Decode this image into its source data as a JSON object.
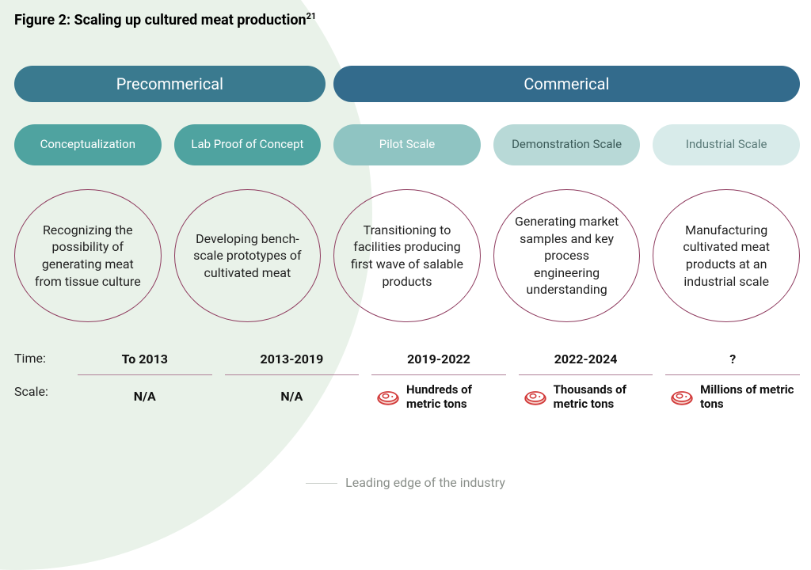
{
  "title": "Figure 2: Scaling up cultured meat production",
  "title_sup": "21",
  "leading_edge_bg": "#e9f2e9",
  "phases": [
    {
      "label": "Precommerical",
      "bg": "#3a7a8f",
      "text": "#ffffff",
      "span": 2
    },
    {
      "label": "Commerical",
      "bg": "#336b8c",
      "text": "#ffffff",
      "span": 3
    }
  ],
  "stages": [
    {
      "label": "Conceptualization",
      "bg": "#4fa3a0",
      "text": "#ffffff"
    },
    {
      "label": "Lab Proof of Concept",
      "bg": "#4fa3a0",
      "text": "#ffffff"
    },
    {
      "label": "Pilot Scale",
      "bg": "#8fc4c2",
      "text": "#ffffff"
    },
    {
      "label": "Demonstration Scale",
      "bg": "#b8d9d7",
      "text": "#3b5a58"
    },
    {
      "label": "Industrial Scale",
      "bg": "#d8ebea",
      "text": "#5a7a78"
    }
  ],
  "descriptions": [
    "Recognizing the possibility of generating meat from tissue culture",
    "Developing bench-scale prototypes of cultivated meat",
    "Transitioning to facilities producing first wave of salable products",
    "Generating market samples and key process engineering understanding",
    "Manufacturing cultivated meat products at an industrial scale"
  ],
  "oval_border": "#8e3a5e",
  "time_label": "Time:",
  "times": [
    "To 2013",
    "2013-2019",
    "2019-2022",
    "2022-2024",
    "?"
  ],
  "scale_label": "Scale:",
  "scales": [
    {
      "text": "N/A",
      "icon": false
    },
    {
      "text": "N/A",
      "icon": false
    },
    {
      "text": "Hundreds of metric tons",
      "icon": true
    },
    {
      "text": "Thousands of metric tons",
      "icon": true
    },
    {
      "text": "Millions of metric tons",
      "icon": true
    }
  ],
  "meat_icon_stroke": "#d23a3a",
  "meat_icon_fill": "#f6cfc8",
  "caption": "Leading edge of the industry"
}
